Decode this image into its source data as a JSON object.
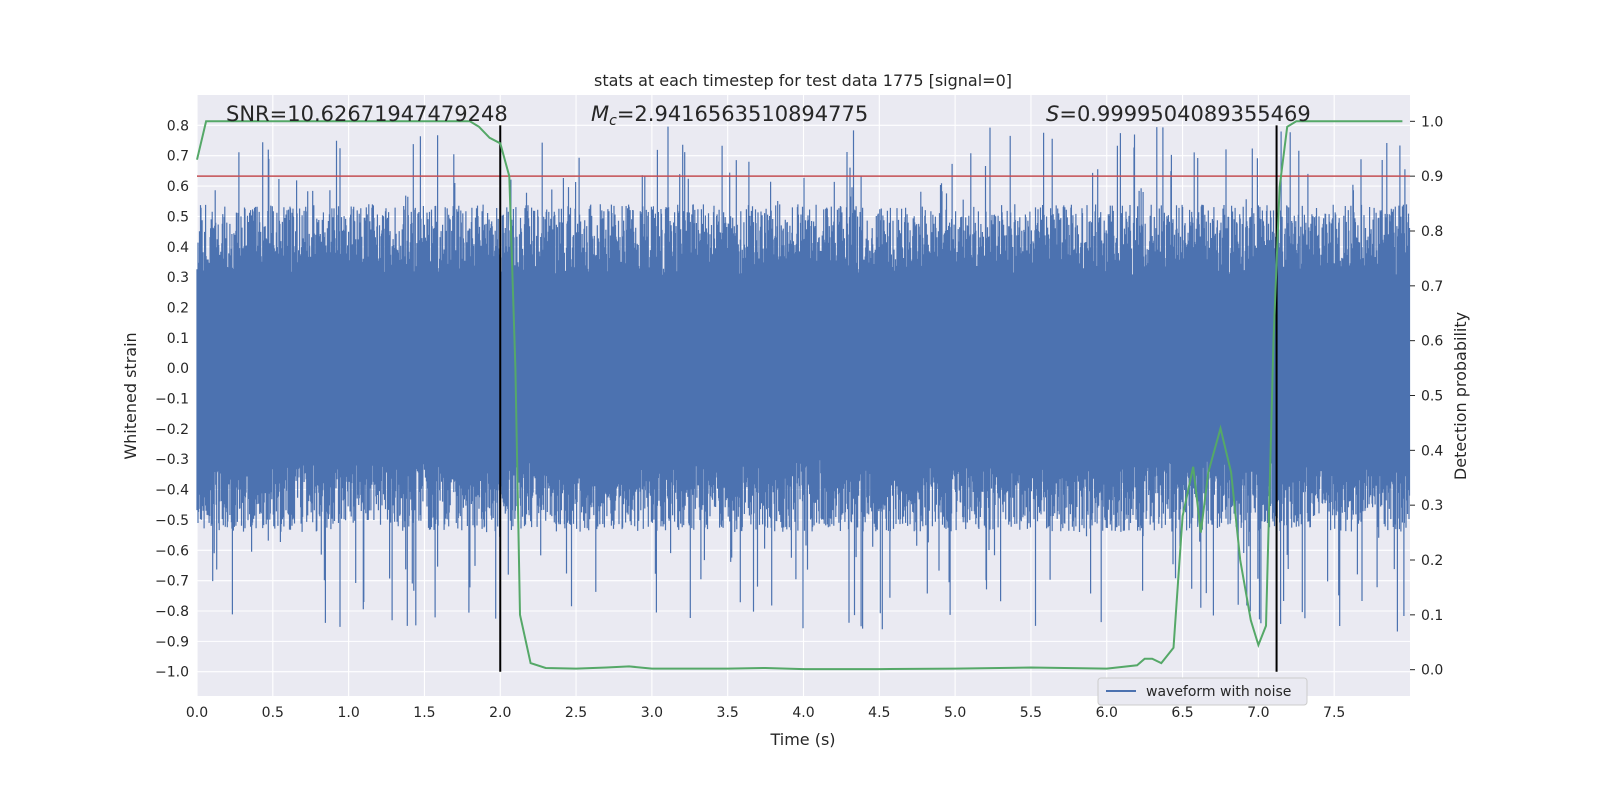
{
  "chart_data": {
    "type": "line",
    "title": "stats at each timestep for test data 1775 [signal=0]",
    "xlabel": "Time (s)",
    "ylabel": "Whitened strain",
    "y2label": "Detection probability",
    "xlim": [
      0.0,
      8.0
    ],
    "ylim": [
      -1.08,
      0.9
    ],
    "y2lim": [
      -0.048,
      1.048
    ],
    "x_ticks": [
      "0.0",
      "0.5",
      "1.0",
      "1.5",
      "2.0",
      "2.5",
      "3.0",
      "3.5",
      "4.0",
      "4.5",
      "5.0",
      "5.5",
      "6.0",
      "6.5",
      "7.0",
      "7.5"
    ],
    "y_ticks": [
      "0.8",
      "0.7",
      "0.6",
      "0.5",
      "0.4",
      "0.3",
      "0.2",
      "0.1",
      "0.0",
      "−0.1",
      "−0.2",
      "−0.3",
      "−0.4",
      "−0.5",
      "−0.6",
      "−0.7",
      "−0.8",
      "−0.9",
      "−1.0"
    ],
    "y2_ticks": [
      "1.0",
      "0.9",
      "0.8",
      "0.7",
      "0.6",
      "0.5",
      "0.4",
      "0.3",
      "0.2",
      "0.1",
      "0.0"
    ],
    "grid": true,
    "legend": {
      "entries": [
        "waveform with noise"
      ],
      "placement": "lower right"
    },
    "annotations": {
      "snr_prefix": "SNR=",
      "snr_value": "10.62671947479248",
      "mc_sym": "M",
      "mc_sub": "c",
      "mc_value": "=2.9416563510894775",
      "s_sym": "S",
      "s_value": "=0.9999504089355469"
    },
    "waveform": {
      "name": "waveform with noise",
      "color": "#4c72b0",
      "x_range": [
        0.0,
        8.0
      ],
      "typical_envelope": [
        -0.28,
        0.26
      ],
      "peak_max": 0.8,
      "trough_min": -0.87
    },
    "detection_probability": {
      "color": "#55a868",
      "x": [
        0.0,
        0.06,
        0.1,
        0.3,
        0.5,
        0.8,
        1.0,
        1.3,
        1.6,
        1.8,
        1.86,
        1.93,
        2.0,
        2.06,
        2.1,
        2.13,
        2.2,
        2.3,
        2.5,
        2.7,
        2.85,
        3.0,
        3.5,
        3.75,
        4.0,
        4.5,
        5.0,
        5.5,
        6.0,
        6.2,
        6.25,
        6.3,
        6.36,
        6.44,
        6.5,
        6.57,
        6.62,
        6.67,
        6.75,
        6.82,
        6.88,
        6.95,
        7.0,
        7.05,
        7.1,
        7.14,
        7.19,
        7.25,
        7.5,
        7.8,
        7.95
      ],
      "y": [
        0.93,
        1.0,
        1.0,
        1.0,
        1.0,
        1.0,
        1.0,
        1.0,
        1.0,
        1.0,
        0.99,
        0.97,
        0.96,
        0.9,
        0.55,
        0.1,
        0.012,
        0.003,
        0.002,
        0.004,
        0.006,
        0.002,
        0.002,
        0.003,
        0.001,
        0.001,
        0.002,
        0.004,
        0.002,
        0.008,
        0.02,
        0.02,
        0.012,
        0.04,
        0.28,
        0.37,
        0.25,
        0.36,
        0.44,
        0.36,
        0.2,
        0.09,
        0.045,
        0.08,
        0.6,
        0.88,
        0.99,
        1.0,
        1.0,
        1.0,
        1.0
      ]
    },
    "threshold": {
      "color": "#c44e52",
      "value": 0.9
    },
    "vlines": {
      "color": "#000000",
      "x": [
        2.0,
        7.12
      ],
      "y_from": -1.0,
      "y_to": 0.8
    }
  }
}
